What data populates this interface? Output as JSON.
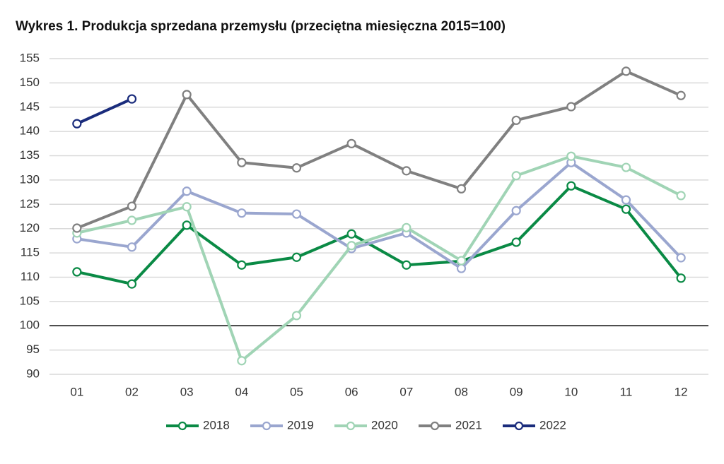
{
  "chart_data": {
    "type": "line",
    "title": "Wykres 1. Produkcja sprzedana przemysłu (przeciętna miesięczna 2015=100)",
    "categories": [
      "01",
      "02",
      "03",
      "04",
      "05",
      "06",
      "07",
      "08",
      "09",
      "10",
      "11",
      "12"
    ],
    "series": [
      {
        "name": "2018",
        "color": "#0a8a45",
        "values": [
          111.1,
          108.6,
          120.7,
          112.5,
          114.1,
          118.9,
          112.5,
          113.3,
          117.2,
          128.8,
          124.0,
          109.8
        ]
      },
      {
        "name": "2019",
        "color": "#9aa6cf",
        "values": [
          117.9,
          116.2,
          127.7,
          123.2,
          123.0,
          115.9,
          119.1,
          111.8,
          123.7,
          133.6,
          125.9,
          114.0
        ]
      },
      {
        "name": "2020",
        "color": "#a0d4b5",
        "values": [
          119.1,
          121.7,
          124.5,
          92.8,
          102.1,
          116.5,
          120.2,
          113.4,
          130.9,
          134.9,
          132.6,
          126.8
        ]
      },
      {
        "name": "2021",
        "color": "#808080",
        "values": [
          120.1,
          124.6,
          147.6,
          133.6,
          132.5,
          137.5,
          131.9,
          128.2,
          142.3,
          145.1,
          152.4,
          147.4
        ]
      },
      {
        "name": "2022",
        "color": "#1a2c7c",
        "values": [
          141.6,
          146.7,
          null,
          null,
          null,
          null,
          null,
          null,
          null,
          null,
          null,
          null
        ]
      }
    ],
    "ylim": [
      90,
      155
    ],
    "yticks": [
      90,
      95,
      100,
      105,
      110,
      115,
      120,
      125,
      130,
      135,
      140,
      145,
      150,
      155
    ],
    "grid": true,
    "reference_line": 100,
    "legend": "bottom"
  }
}
